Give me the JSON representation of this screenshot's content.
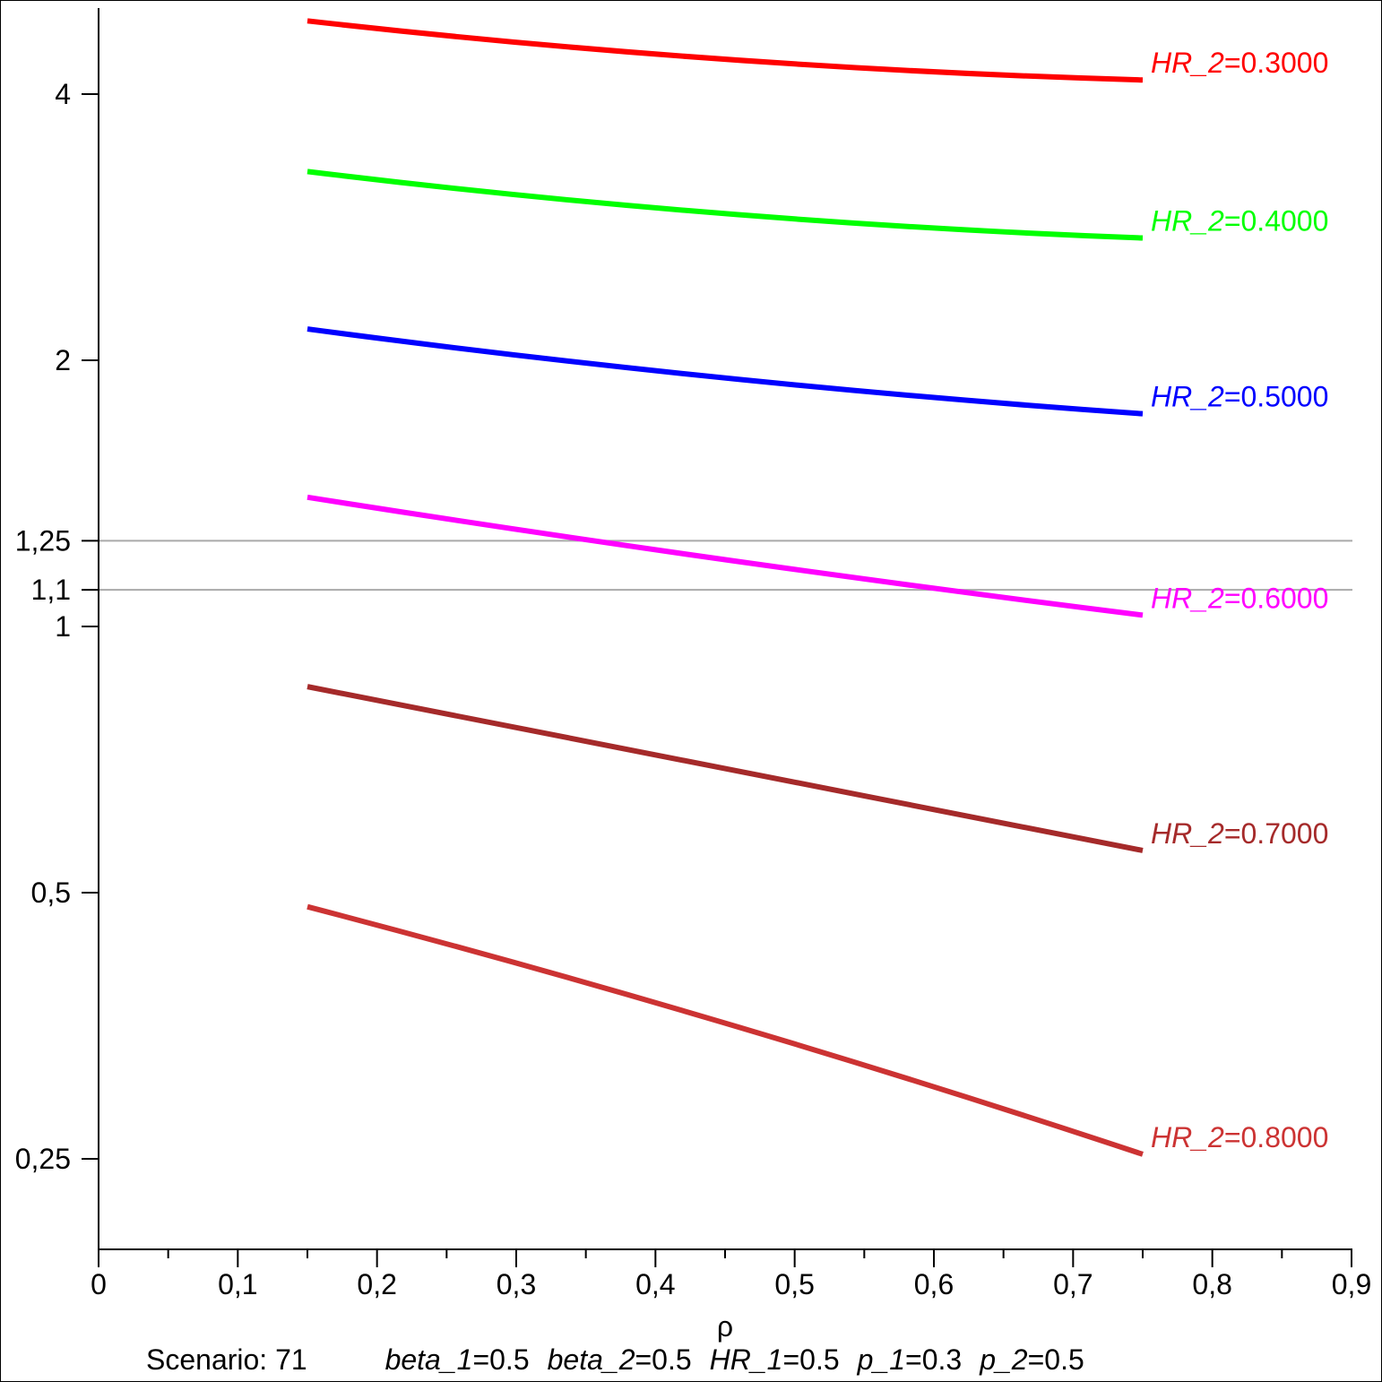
{
  "chart_data": {
    "type": "line",
    "title": "",
    "xlabel": "ρ",
    "ylabel": "",
    "xlim": [
      0,
      0.9
    ],
    "ylim": [
      0.2,
      5
    ],
    "y_scale": "log",
    "grid": false,
    "x_ticks": [
      "0",
      "0,1",
      "0,2",
      "0,3",
      "0,4",
      "0,5",
      "0,6",
      "0,7",
      "0,8",
      "0,9"
    ],
    "x_tick_values": [
      0,
      0.1,
      0.2,
      0.3,
      0.4,
      0.5,
      0.6,
      0.7,
      0.8,
      0.9
    ],
    "y_ticks": [
      "4",
      "2",
      "1,25",
      "1,1",
      "1",
      "0,5",
      "0,25"
    ],
    "y_tick_values": [
      4,
      2,
      1.25,
      1.1,
      1,
      0.5,
      0.25
    ],
    "reference_lines": [
      1.25,
      1.1
    ],
    "reference_color": "#aaaaaa",
    "x": [
      0.15,
      0.45,
      0.75
    ],
    "series": [
      {
        "name": "HR_2",
        "value": "0.3000",
        "color": "#ff0000",
        "values": [
          4.84,
          4.38,
          4.15
        ]
      },
      {
        "name": "HR_2",
        "value": "0.4000",
        "color": "#00ff00",
        "values": [
          3.27,
          2.93,
          2.75
        ]
      },
      {
        "name": "HR_2",
        "value": "0.5000",
        "color": "#0000ff",
        "values": [
          2.17,
          1.91,
          1.74
        ]
      },
      {
        "name": "HR_2",
        "value": "0.6000",
        "color": "#ff00ff",
        "values": [
          1.4,
          1.19,
          1.03
        ]
      },
      {
        "name": "HR_2",
        "value": "0.7000",
        "color": "#a52a2a",
        "values": [
          0.855,
          0.69,
          0.558
        ]
      },
      {
        "name": "HR_2",
        "value": "0.8000",
        "color": "#cc3333",
        "values": [
          0.482,
          0.356,
          0.253
        ]
      }
    ],
    "caption": {
      "scenario": "Scenario: 71",
      "params": [
        {
          "name": "beta_1",
          "value": "0.5"
        },
        {
          "name": "beta_2",
          "value": "0.5"
        },
        {
          "name": "HR_1",
          "value": "0.5"
        },
        {
          "name": "p_1",
          "value": "0.3"
        },
        {
          "name": "p_2",
          "value": "0.5"
        }
      ]
    }
  }
}
